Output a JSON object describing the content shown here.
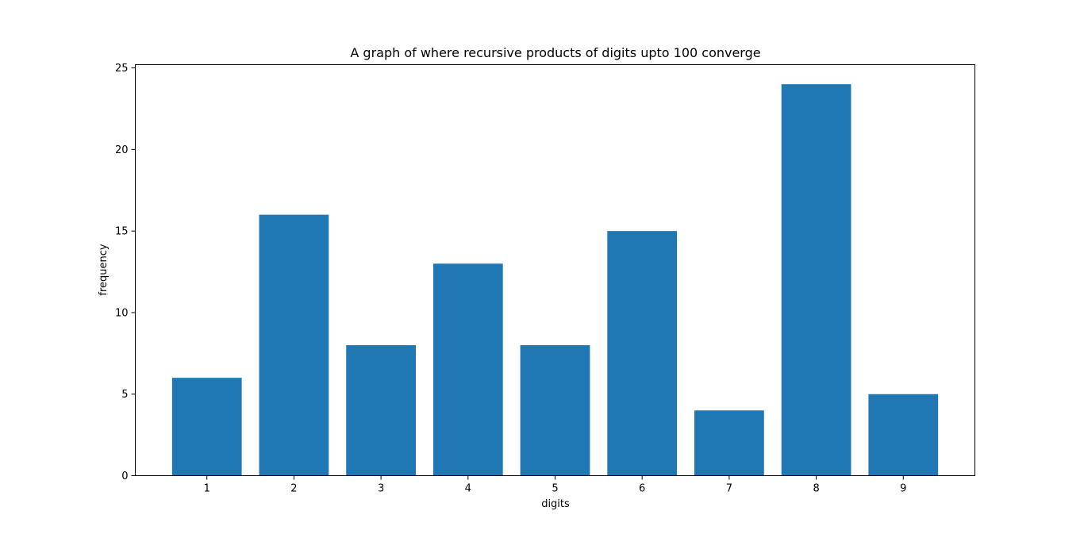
{
  "chart_data": {
    "type": "bar",
    "title": "A graph of where recursive products of digits upto 100 converge",
    "xlabel": "digits",
    "ylabel": "frequency",
    "categories": [
      "1",
      "2",
      "3",
      "4",
      "5",
      "6",
      "7",
      "8",
      "9"
    ],
    "values": [
      6,
      16,
      8,
      13,
      8,
      15,
      4,
      24,
      5
    ],
    "ylim": [
      0,
      25.2
    ],
    "yticks": [
      0,
      5,
      10,
      15,
      20,
      25
    ],
    "bar_color": "#1f77b4",
    "grid": false,
    "legend": "none"
  }
}
